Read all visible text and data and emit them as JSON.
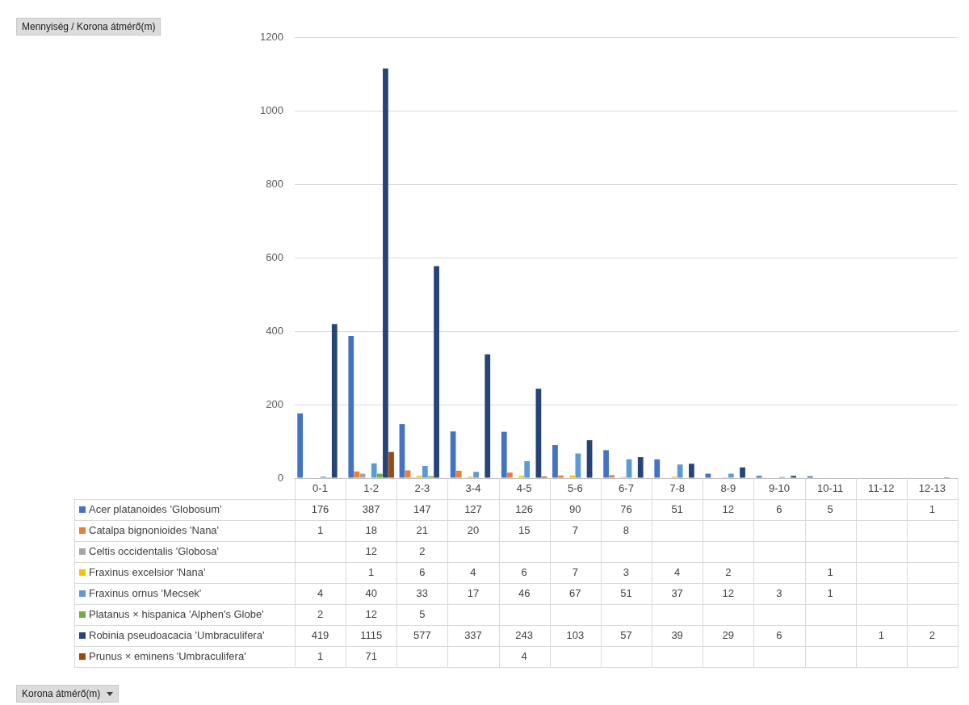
{
  "chart_data": {
    "type": "bar",
    "annotations": [
      "Mennyiség / Korona átmérő(m)",
      "Korona átmérő(m)"
    ],
    "categories": [
      "0-1",
      "1-2",
      "2-3",
      "3-4",
      "4-5",
      "5-6",
      "6-7",
      "7-8",
      "8-9",
      "9-10",
      "10-11",
      "11-12",
      "12-13"
    ],
    "series": [
      {
        "name": "Acer platanoides 'Globosum'",
        "color": "#4472c4",
        "values": [
          176,
          387,
          147,
          127,
          126,
          90,
          76,
          51,
          12,
          6,
          5,
          null,
          1
        ]
      },
      {
        "name": "Catalpa bignonioides 'Nana'",
        "color": "#ed7d31",
        "values": [
          1,
          18,
          21,
          20,
          15,
          7,
          8,
          null,
          null,
          null,
          null,
          null,
          null
        ]
      },
      {
        "name": "Celtis occidentalis 'Globosa'",
        "color": "#a5a5a5",
        "values": [
          null,
          12,
          2,
          null,
          null,
          null,
          null,
          null,
          null,
          null,
          null,
          null,
          null
        ]
      },
      {
        "name": "Fraxinus excelsior 'Nana'",
        "color": "#ffc000",
        "values": [
          null,
          1,
          6,
          4,
          6,
          7,
          3,
          4,
          2,
          null,
          1,
          null,
          null
        ]
      },
      {
        "name": "Fraxinus ornus 'Mecsek'",
        "color": "#5b9bd5",
        "values": [
          4,
          40,
          33,
          17,
          46,
          67,
          51,
          37,
          12,
          3,
          1,
          null,
          null
        ]
      },
      {
        "name": "Platanus × hispanica 'Alphen's Globe'",
        "color": "#70ad47",
        "values": [
          2,
          12,
          5,
          null,
          null,
          null,
          null,
          null,
          null,
          null,
          null,
          null,
          null
        ]
      },
      {
        "name": "Robinia pseudoacacia 'Umbraculifera'",
        "color": "#264478",
        "values": [
          419,
          1115,
          577,
          337,
          243,
          103,
          57,
          39,
          29,
          6,
          null,
          1,
          2
        ]
      },
      {
        "name": "Prunus × eminens 'Umbraculifera'",
        "color": "#9e480e",
        "values": [
          1,
          71,
          null,
          null,
          4,
          null,
          null,
          null,
          null,
          null,
          null,
          null,
          null
        ]
      }
    ],
    "ylim": [
      0,
      1200
    ],
    "yticks": [
      0,
      200,
      400,
      600,
      800,
      1000,
      1200
    ],
    "grid": "y",
    "legend": "bottom",
    "data_labels": true
  }
}
